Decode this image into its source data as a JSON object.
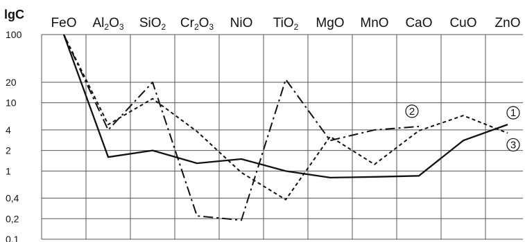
{
  "chart_data": {
    "type": "line",
    "ylabel": "lgC",
    "y_scale": "log",
    "ylim": [
      0.1,
      100
    ],
    "y_ticks": [
      "100",
      "20",
      "10",
      "4",
      "2",
      "1",
      "0,4",
      "0,2",
      "0.1"
    ],
    "y_tick_values": [
      100,
      20,
      10,
      4,
      2,
      1,
      0.4,
      0.2,
      0.1
    ],
    "categories": [
      {
        "main": "FeO",
        "parts": [
          [
            "FeO",
            false
          ]
        ]
      },
      {
        "main": "Al2O3",
        "parts": [
          [
            "Al",
            false
          ],
          [
            "2",
            true
          ],
          [
            "O",
            false
          ],
          [
            "3",
            true
          ]
        ]
      },
      {
        "main": "SiO2",
        "parts": [
          [
            "SiO",
            false
          ],
          [
            "2",
            true
          ]
        ]
      },
      {
        "main": "Cr2O3",
        "parts": [
          [
            "Cr",
            false
          ],
          [
            "2",
            true
          ],
          [
            "O",
            false
          ],
          [
            "3",
            true
          ]
        ]
      },
      {
        "main": "NiO",
        "parts": [
          [
            "NiO",
            false
          ]
        ]
      },
      {
        "main": "TiO2",
        "parts": [
          [
            "TiO",
            false
          ],
          [
            "2",
            true
          ]
        ]
      },
      {
        "main": "MgO",
        "parts": [
          [
            "MgO",
            false
          ]
        ]
      },
      {
        "main": "MnO",
        "parts": [
          [
            "MnO",
            false
          ]
        ]
      },
      {
        "main": "CaO",
        "parts": [
          [
            "CaO",
            false
          ]
        ]
      },
      {
        "main": "CuO",
        "parts": [
          [
            "CuO",
            false
          ]
        ]
      },
      {
        "main": "ZnO",
        "parts": [
          [
            "ZnO",
            false
          ]
        ]
      }
    ],
    "series": [
      {
        "marker": "1",
        "style": "solid",
        "color": "#111111",
        "x": [
          0,
          1,
          2,
          3,
          4,
          5,
          6,
          7,
          8,
          9,
          10
        ],
        "y": [
          100,
          1.6,
          2,
          1.3,
          1.5,
          1.0,
          0.8,
          0.82,
          0.85,
          2.8,
          4.8
        ]
      },
      {
        "marker": "2",
        "style": "dashdot",
        "color": "#111111",
        "x": [
          0,
          1,
          2,
          3,
          4,
          5,
          6,
          7,
          8
        ],
        "y": [
          100,
          4,
          20,
          0.22,
          0.19,
          22,
          2.8,
          4,
          4.5
        ]
      },
      {
        "marker": "3",
        "style": "dotted",
        "color": "#111111",
        "x": [
          0,
          1,
          2,
          3,
          4,
          5,
          6,
          7,
          8,
          9,
          10
        ],
        "y": [
          100,
          4.8,
          11.5,
          3.8,
          0.95,
          0.38,
          3.2,
          1.25,
          3.9,
          6.5,
          3.6
        ]
      }
    ],
    "grid": true
  }
}
